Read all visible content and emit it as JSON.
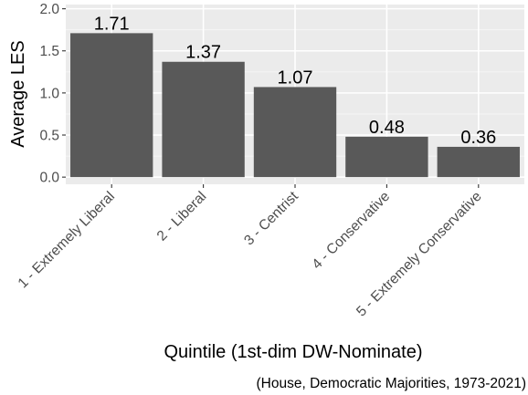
{
  "chart_data": {
    "type": "bar",
    "categories": [
      "1 - Extremely Liberal",
      "2 - Liberal",
      "3 - Centrist",
      "4 - Conservative",
      "5 - Extremely Conservative"
    ],
    "values": [
      1.71,
      1.37,
      1.07,
      0.48,
      0.36
    ],
    "data_labels": [
      "1.71",
      "1.37",
      "1.07",
      "0.48",
      "0.36"
    ],
    "ylim": [
      -0.085,
      2.05
    ],
    "yticks": [
      0.0,
      0.5,
      1.0,
      1.5,
      2.0
    ],
    "ytick_labels": [
      "0.0",
      "0.5",
      "1.0",
      "1.5",
      "2.0"
    ],
    "xlabel": "Quintile (1st-dim DW-Nominate)",
    "ylabel": "Average LES",
    "caption": "(House, Democratic Majorities, 1973-2021)",
    "grid": true,
    "legend": "none",
    "colors": {
      "bar": "#595959",
      "panel_background": "#ebebeb",
      "grid_major": "#ffffff",
      "grid_minor": "#f5f5f5",
      "tick_text": "#4d4d4d"
    }
  }
}
